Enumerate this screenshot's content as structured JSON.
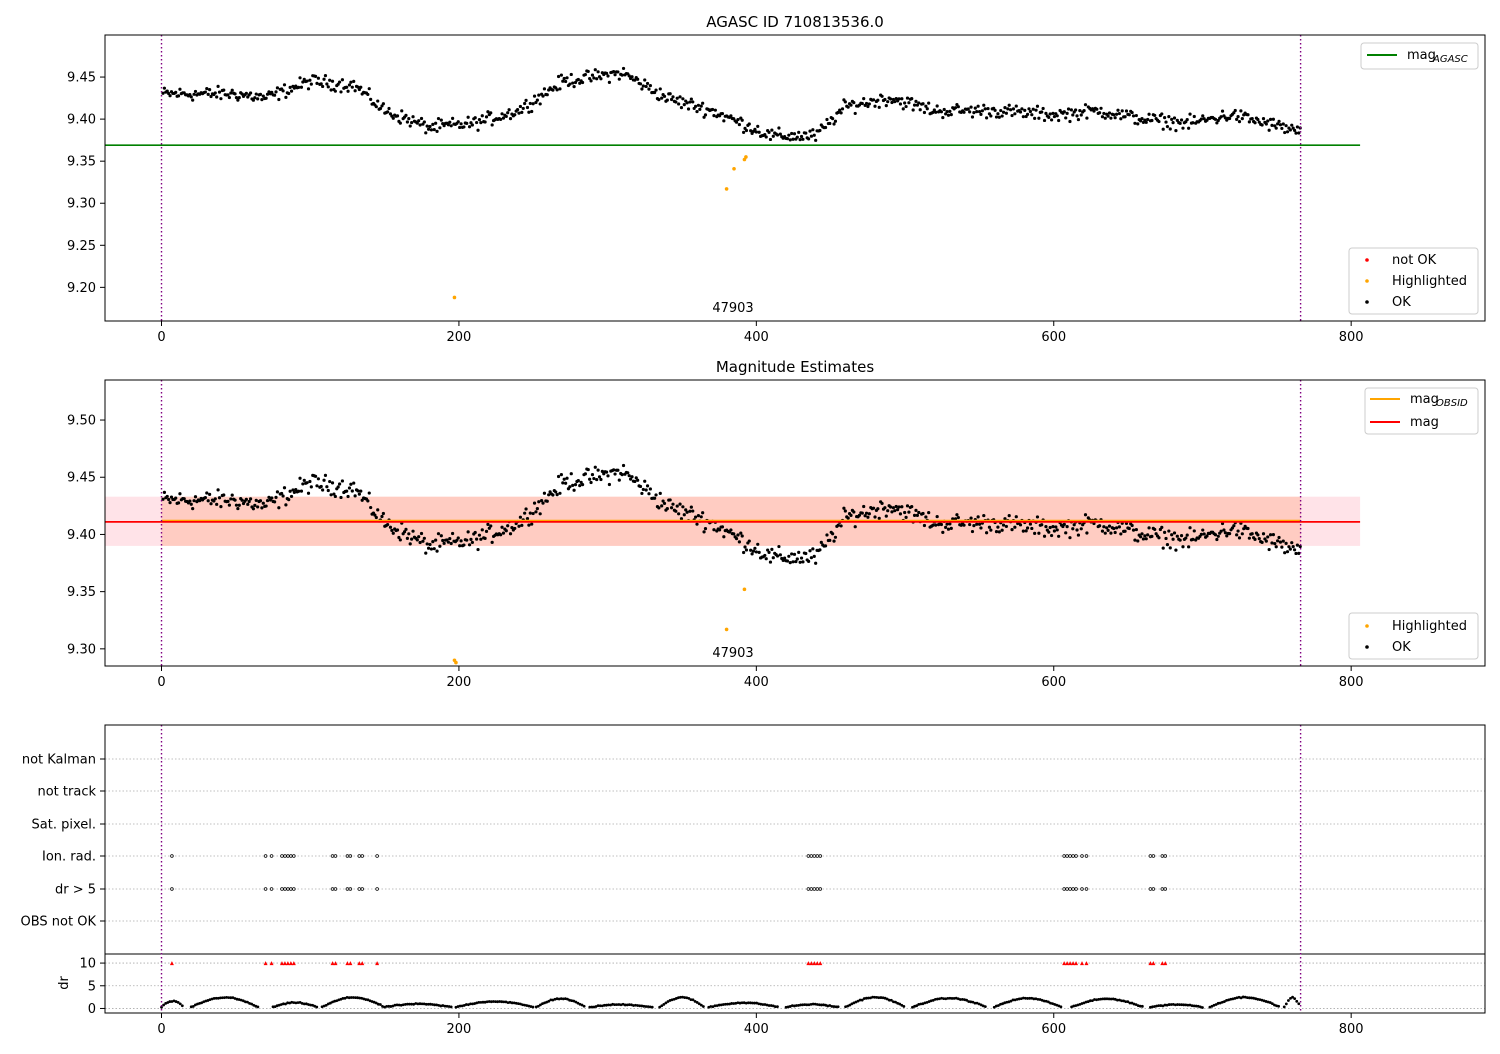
{
  "chart_data": [
    {
      "type": "scatter",
      "title": "AGASC ID 710813536.0",
      "xlim": [
        -38,
        890
      ],
      "ylim": [
        9.16,
        9.5
      ],
      "xticks": [
        0,
        200,
        400,
        600,
        800
      ],
      "yticks": [
        9.2,
        9.25,
        9.3,
        9.35,
        9.4,
        9.45
      ],
      "ytick_labels": [
        "9.20",
        "9.25",
        "9.30",
        "9.35",
        "9.40",
        "9.45"
      ],
      "vlines": [
        0,
        766
      ],
      "hline": {
        "name": "mag_AGASC",
        "label_main": "mag",
        "label_sub": "AGASC",
        "y": 9.369,
        "x_range": [
          -38,
          806
        ],
        "color": "#008000"
      },
      "annotation": {
        "text": "47903",
        "x": 383,
        "y": 9.168
      },
      "legend_points": [
        {
          "name": "not OK",
          "color": "#ff0000"
        },
        {
          "name": "Highlighted",
          "color": "#ffa500"
        },
        {
          "name": "OK",
          "color": "#000000"
        }
      ],
      "highlighted": [
        [
          197,
          9.188
        ],
        [
          380,
          9.317
        ],
        [
          392,
          9.352
        ],
        [
          393,
          9.355
        ],
        [
          385,
          9.341
        ]
      ],
      "ok_keyframes": [
        [
          0,
          9.43
        ],
        [
          50,
          9.43
        ],
        [
          70,
          9.425
        ],
        [
          100,
          9.445
        ],
        [
          130,
          9.44
        ],
        [
          150,
          9.41
        ],
        [
          180,
          9.39
        ],
        [
          210,
          9.395
        ],
        [
          240,
          9.41
        ],
        [
          270,
          9.445
        ],
        [
          310,
          9.455
        ],
        [
          340,
          9.425
        ],
        [
          370,
          9.41
        ],
        [
          390,
          9.395
        ],
        [
          410,
          9.38
        ],
        [
          440,
          9.38
        ],
        [
          460,
          9.415
        ],
        [
          490,
          9.425
        ],
        [
          520,
          9.41
        ],
        [
          560,
          9.41
        ],
        [
          600,
          9.405
        ],
        [
          630,
          9.41
        ],
        [
          660,
          9.4
        ],
        [
          690,
          9.395
        ],
        [
          720,
          9.405
        ],
        [
          766,
          9.385
        ]
      ]
    },
    {
      "type": "scatter",
      "title": "Magnitude Estimates",
      "xlim": [
        -38,
        890
      ],
      "ylim": [
        9.285,
        9.535
      ],
      "xticks": [
        0,
        200,
        400,
        600,
        800
      ],
      "yticks": [
        9.3,
        9.35,
        9.4,
        9.45,
        9.5
      ],
      "ytick_labels": [
        "9.30",
        "9.35",
        "9.40",
        "9.45",
        "9.50"
      ],
      "vlines": [
        0,
        766
      ],
      "band_outer": {
        "y0": 9.39,
        "y1": 9.433,
        "x_range": [
          -38,
          806
        ],
        "color": "#ffc0cb"
      },
      "band_inner": {
        "y0": 9.39,
        "y1": 9.433,
        "x_range": [
          0,
          766
        ],
        "color": "#ffa07a"
      },
      "lines": [
        {
          "name": "mag_OBSID",
          "label_main": "mag",
          "label_sub": "OBSID",
          "y": 9.412,
          "x_range": [
            0,
            766
          ],
          "color": "#ffa500"
        },
        {
          "name": "mag",
          "label_main": "mag",
          "label_sub": "",
          "y": 9.411,
          "x_range": [
            -38,
            806
          ],
          "color": "#ff0000"
        }
      ],
      "annotation": {
        "text": "47903",
        "x": 383,
        "y": 9.29
      },
      "legend_points": [
        {
          "name": "Highlighted",
          "color": "#ffa500"
        },
        {
          "name": "OK",
          "color": "#000000"
        }
      ],
      "highlighted": [
        [
          197,
          9.29
        ],
        [
          198,
          9.288
        ],
        [
          380,
          9.317
        ],
        [
          392,
          9.352
        ]
      ]
    },
    {
      "type": "scatter",
      "title": "",
      "xlim": [
        -38,
        890
      ],
      "xticks": [
        0,
        200,
        400,
        600,
        800
      ],
      "vlines": [
        0,
        766
      ],
      "flag_rows": [
        "not Kalman",
        "not track",
        "Sat. pixel.",
        "Ion. rad.",
        "dr > 5",
        "OBS not OK"
      ],
      "flag_x": [
        7,
        70,
        74,
        81,
        83,
        85,
        87,
        89,
        115,
        117,
        125,
        127,
        133,
        135,
        145,
        435,
        437,
        439,
        441,
        443,
        607,
        609,
        611,
        613,
        615,
        619,
        622,
        665,
        667,
        673,
        675
      ],
      "flagged_rows": [
        "Ion. rad.",
        "dr > 5"
      ],
      "dr_ylim": [
        -1,
        12
      ],
      "dr_yticks": [
        0,
        5,
        10
      ],
      "dr_ylabel": "dr",
      "dr_flag_marker_y": 10,
      "dr_cycles": [
        [
          0,
          15
        ],
        [
          20,
          65
        ],
        [
          75,
          105
        ],
        [
          108,
          150
        ],
        [
          150,
          195
        ],
        [
          198,
          250
        ],
        [
          252,
          285
        ],
        [
          288,
          330
        ],
        [
          335,
          365
        ],
        [
          368,
          415
        ],
        [
          420,
          455
        ],
        [
          460,
          500
        ],
        [
          505,
          555
        ],
        [
          560,
          605
        ],
        [
          612,
          660
        ],
        [
          665,
          700
        ],
        [
          705,
          752
        ],
        [
          755,
          766
        ]
      ]
    }
  ]
}
